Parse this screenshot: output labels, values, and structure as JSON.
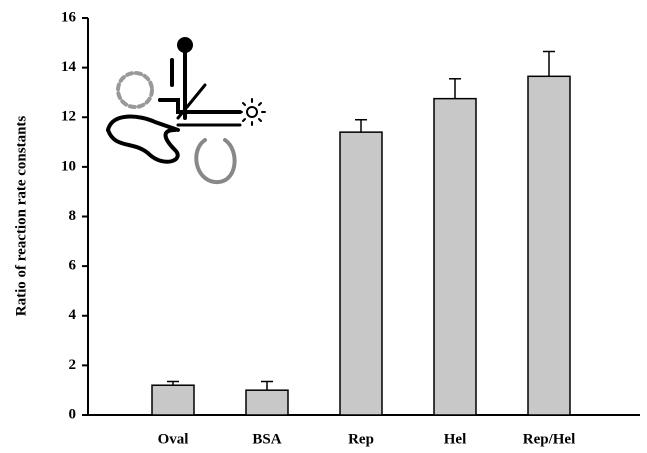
{
  "chart_data": {
    "type": "bar",
    "y_label": "Ratio of reaction rate constants",
    "categories": [
      "Oval",
      "BSA",
      "Rep",
      "Hel",
      "Rep/Hel"
    ],
    "values": [
      1.2,
      1.0,
      11.4,
      12.75,
      13.65
    ],
    "errors": [
      0.15,
      0.35,
      0.5,
      0.8,
      1.0
    ],
    "color": "#c8c8c8",
    "ylim": [
      0,
      16
    ],
    "yticks": [
      0,
      2,
      4,
      6,
      8,
      10,
      12,
      14,
      16
    ],
    "grid": false
  }
}
